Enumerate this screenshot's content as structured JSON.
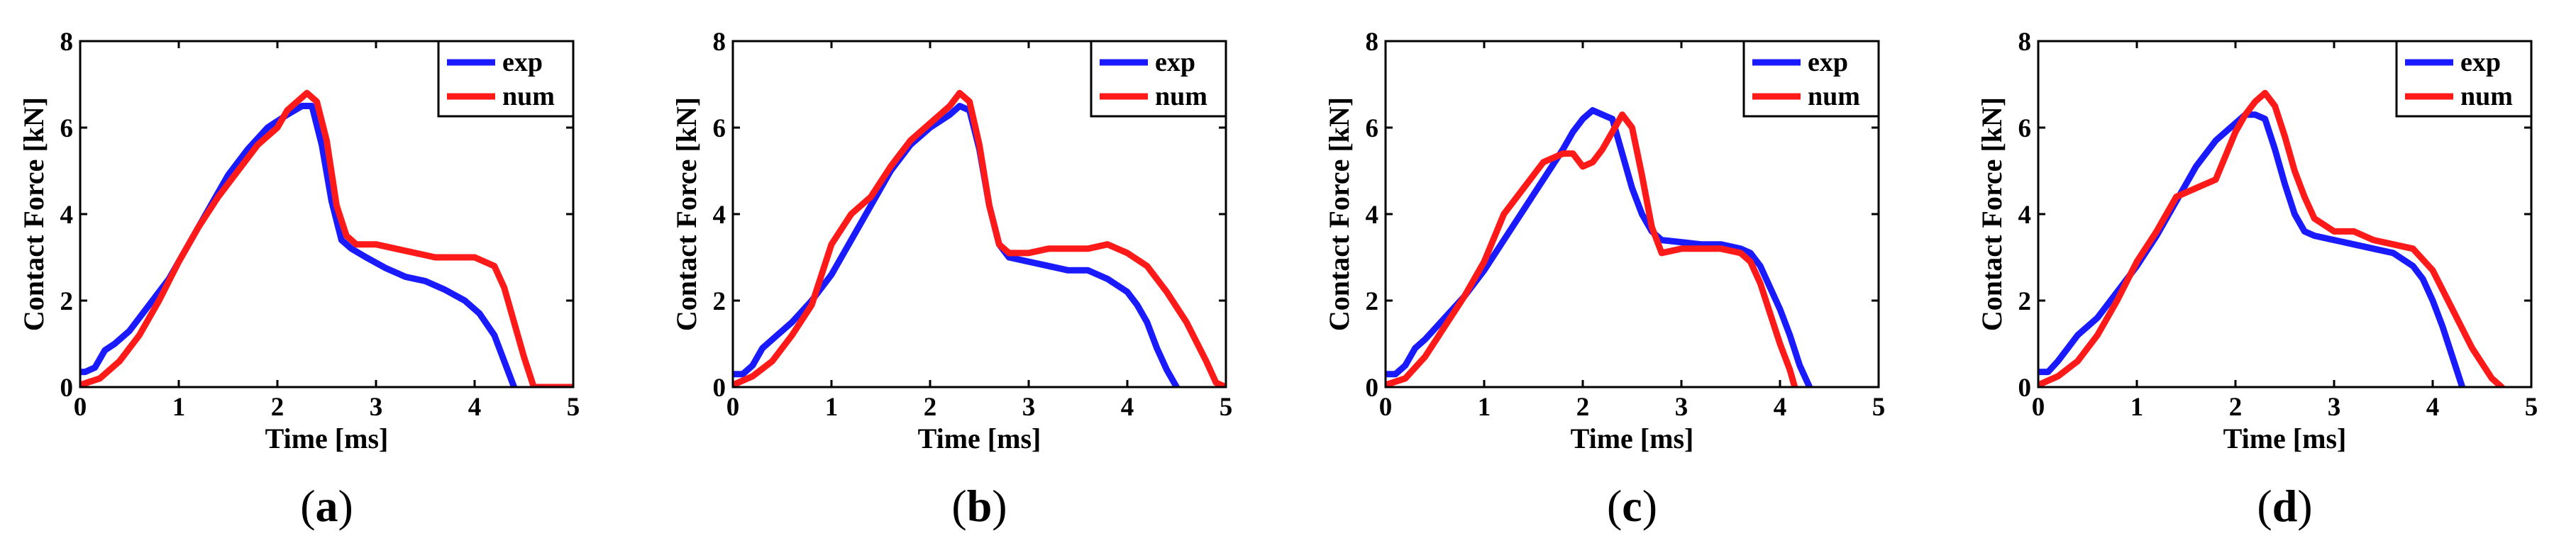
{
  "chart_data": [
    {
      "type": "line",
      "caption_open": "(",
      "caption_letter": "a",
      "caption_close": ")",
      "xlabel": "Time [ms]",
      "ylabel": "Contact Force [kN]",
      "xlim": [
        0,
        5
      ],
      "ylim": [
        0,
        8
      ],
      "xticks": [
        "0",
        "1",
        "2",
        "3",
        "4",
        "5"
      ],
      "yticks": [
        "0",
        "2",
        "4",
        "6",
        "8"
      ],
      "legend": [
        "exp",
        "num"
      ],
      "series": [
        {
          "name": "exp",
          "color": "#1a1aff",
          "x": [
            0,
            0.05,
            0.15,
            0.25,
            0.35,
            0.5,
            0.7,
            0.9,
            1.1,
            1.3,
            1.5,
            1.7,
            1.9,
            2.1,
            2.25,
            2.35,
            2.45,
            2.55,
            2.65,
            2.75,
            2.9,
            3.1,
            3.3,
            3.5,
            3.7,
            3.9,
            4.05,
            4.2,
            4.3,
            4.4
          ],
          "y": [
            0.35,
            0.35,
            0.45,
            0.85,
            1.0,
            1.3,
            1.9,
            2.5,
            3.3,
            4.1,
            4.9,
            5.5,
            6.0,
            6.3,
            6.5,
            6.5,
            5.6,
            4.3,
            3.4,
            3.2,
            3.0,
            2.75,
            2.55,
            2.45,
            2.25,
            2.0,
            1.7,
            1.2,
            0.6,
            0
          ]
        },
        {
          "name": "num",
          "color": "#ff1a1a",
          "x": [
            0,
            0.2,
            0.4,
            0.6,
            0.8,
            1.0,
            1.2,
            1.4,
            1.6,
            1.8,
            2.0,
            2.1,
            2.2,
            2.3,
            2.4,
            2.5,
            2.6,
            2.7,
            2.8,
            3.0,
            3.2,
            3.4,
            3.6,
            3.8,
            4.0,
            4.2,
            4.3,
            4.4,
            4.5,
            4.6,
            4.9,
            5.0
          ],
          "y": [
            0.05,
            0.2,
            0.6,
            1.2,
            2.0,
            2.9,
            3.7,
            4.4,
            5.0,
            5.6,
            6.0,
            6.4,
            6.6,
            6.8,
            6.6,
            5.7,
            4.2,
            3.5,
            3.3,
            3.3,
            3.2,
            3.1,
            3.0,
            3.0,
            3.0,
            2.8,
            2.3,
            1.5,
            0.7,
            0,
            0,
            0
          ]
        }
      ]
    },
    {
      "type": "line",
      "caption_open": "(",
      "caption_letter": "b",
      "caption_close": ")",
      "xlabel": "Time [ms]",
      "ylabel": "Contact Force [kN]",
      "xlim": [
        0,
        5
      ],
      "ylim": [
        0,
        8
      ],
      "xticks": [
        "0",
        "1",
        "2",
        "3",
        "4",
        "5"
      ],
      "yticks": [
        "0",
        "2",
        "4",
        "6",
        "8"
      ],
      "legend": [
        "exp",
        "num"
      ],
      "series": [
        {
          "name": "exp",
          "color": "#1a1aff",
          "x": [
            0,
            0.1,
            0.2,
            0.3,
            0.4,
            0.6,
            0.8,
            1.0,
            1.2,
            1.4,
            1.6,
            1.8,
            2.0,
            2.2,
            2.3,
            2.4,
            2.5,
            2.6,
            2.7,
            2.8,
            3.0,
            3.2,
            3.4,
            3.6,
            3.8,
            4.0,
            4.1,
            4.2,
            4.3,
            4.4,
            4.5
          ],
          "y": [
            0.3,
            0.3,
            0.5,
            0.9,
            1.1,
            1.5,
            2.0,
            2.6,
            3.4,
            4.2,
            5.0,
            5.6,
            6.0,
            6.3,
            6.5,
            6.4,
            5.5,
            4.2,
            3.3,
            3.0,
            2.9,
            2.8,
            2.7,
            2.7,
            2.5,
            2.2,
            1.9,
            1.5,
            0.9,
            0.4,
            0
          ]
        },
        {
          "name": "num",
          "color": "#ff1a1a",
          "x": [
            0,
            0.2,
            0.4,
            0.6,
            0.8,
            1.0,
            1.2,
            1.4,
            1.6,
            1.8,
            2.0,
            2.2,
            2.3,
            2.4,
            2.5,
            2.6,
            2.7,
            2.8,
            3.0,
            3.2,
            3.4,
            3.6,
            3.8,
            4.0,
            4.2,
            4.4,
            4.6,
            4.8,
            4.9,
            5.0
          ],
          "y": [
            0.05,
            0.25,
            0.6,
            1.2,
            1.9,
            3.3,
            4.0,
            4.4,
            5.1,
            5.7,
            6.1,
            6.5,
            6.8,
            6.6,
            5.6,
            4.2,
            3.3,
            3.1,
            3.1,
            3.2,
            3.2,
            3.2,
            3.3,
            3.1,
            2.8,
            2.2,
            1.5,
            0.6,
            0.1,
            0
          ]
        }
      ]
    },
    {
      "type": "line",
      "caption_open": "(",
      "caption_letter": "c",
      "caption_close": ")",
      "xlabel": "Time [ms]",
      "ylabel": "Contact Force [kN]",
      "xlim": [
        0,
        5
      ],
      "ylim": [
        0,
        8
      ],
      "xticks": [
        "0",
        "1",
        "2",
        "3",
        "4",
        "5"
      ],
      "yticks": [
        "0",
        "2",
        "4",
        "6",
        "8"
      ],
      "legend": [
        "exp",
        "num"
      ],
      "series": [
        {
          "name": "exp",
          "color": "#1a1aff",
          "x": [
            0,
            0.1,
            0.2,
            0.3,
            0.4,
            0.6,
            0.8,
            1.0,
            1.2,
            1.4,
            1.6,
            1.8,
            1.9,
            2.0,
            2.1,
            2.2,
            2.3,
            2.4,
            2.5,
            2.6,
            2.7,
            2.8,
            3.0,
            3.2,
            3.4,
            3.6,
            3.7,
            3.8,
            3.9,
            4.0,
            4.1,
            4.2,
            4.3
          ],
          "y": [
            0.3,
            0.3,
            0.5,
            0.9,
            1.1,
            1.6,
            2.1,
            2.7,
            3.4,
            4.1,
            4.8,
            5.5,
            5.9,
            6.2,
            6.4,
            6.3,
            6.2,
            5.4,
            4.6,
            4.0,
            3.6,
            3.4,
            3.35,
            3.3,
            3.3,
            3.2,
            3.1,
            2.8,
            2.3,
            1.8,
            1.2,
            0.5,
            0
          ]
        },
        {
          "name": "num",
          "color": "#ff1a1a",
          "x": [
            0,
            0.2,
            0.4,
            0.6,
            0.8,
            1.0,
            1.2,
            1.4,
            1.6,
            1.8,
            1.9,
            2.0,
            2.1,
            2.2,
            2.3,
            2.4,
            2.5,
            2.6,
            2.7,
            2.8,
            3.0,
            3.2,
            3.4,
            3.6,
            3.7,
            3.8,
            3.9,
            4.0,
            4.1,
            4.15
          ],
          "y": [
            0.05,
            0.2,
            0.7,
            1.4,
            2.1,
            2.9,
            4.0,
            4.6,
            5.2,
            5.4,
            5.4,
            5.1,
            5.2,
            5.5,
            5.9,
            6.3,
            6.0,
            4.9,
            3.7,
            3.1,
            3.2,
            3.2,
            3.2,
            3.1,
            2.9,
            2.4,
            1.7,
            1.0,
            0.4,
            0
          ]
        }
      ]
    },
    {
      "type": "line",
      "caption_open": "(",
      "caption_letter": "d",
      "caption_close": ")",
      "xlabel": "Time [ms]",
      "ylabel": "Contact Force [kN]",
      "xlim": [
        0,
        5
      ],
      "ylim": [
        0,
        8
      ],
      "xticks": [
        "0",
        "1",
        "2",
        "3",
        "4",
        "5"
      ],
      "yticks": [
        "0",
        "2",
        "4",
        "6",
        "8"
      ],
      "legend": [
        "exp",
        "num"
      ],
      "series": [
        {
          "name": "exp",
          "color": "#1a1aff",
          "x": [
            0,
            0.1,
            0.2,
            0.3,
            0.4,
            0.6,
            0.8,
            1.0,
            1.2,
            1.4,
            1.6,
            1.8,
            2.0,
            2.1,
            2.2,
            2.3,
            2.4,
            2.5,
            2.6,
            2.7,
            2.8,
            3.0,
            3.2,
            3.4,
            3.6,
            3.8,
            3.9,
            4.0,
            4.1,
            4.2,
            4.3
          ],
          "y": [
            0.35,
            0.35,
            0.6,
            0.9,
            1.2,
            1.6,
            2.2,
            2.8,
            3.5,
            4.3,
            5.1,
            5.7,
            6.1,
            6.3,
            6.3,
            6.2,
            5.5,
            4.7,
            4.0,
            3.6,
            3.5,
            3.4,
            3.3,
            3.2,
            3.1,
            2.8,
            2.5,
            2.0,
            1.4,
            0.7,
            0
          ]
        },
        {
          "name": "num",
          "color": "#ff1a1a",
          "x": [
            0,
            0.2,
            0.4,
            0.6,
            0.8,
            1.0,
            1.2,
            1.4,
            1.6,
            1.8,
            2.0,
            2.1,
            2.2,
            2.3,
            2.4,
            2.5,
            2.6,
            2.7,
            2.8,
            3.0,
            3.2,
            3.4,
            3.6,
            3.8,
            4.0,
            4.2,
            4.4,
            4.6,
            4.7
          ],
          "y": [
            0.05,
            0.25,
            0.6,
            1.2,
            2.0,
            2.9,
            3.6,
            4.4,
            4.6,
            4.8,
            5.9,
            6.3,
            6.6,
            6.8,
            6.5,
            5.8,
            5.0,
            4.4,
            3.9,
            3.6,
            3.6,
            3.4,
            3.3,
            3.2,
            2.7,
            1.8,
            0.9,
            0.2,
            0
          ]
        }
      ]
    }
  ]
}
